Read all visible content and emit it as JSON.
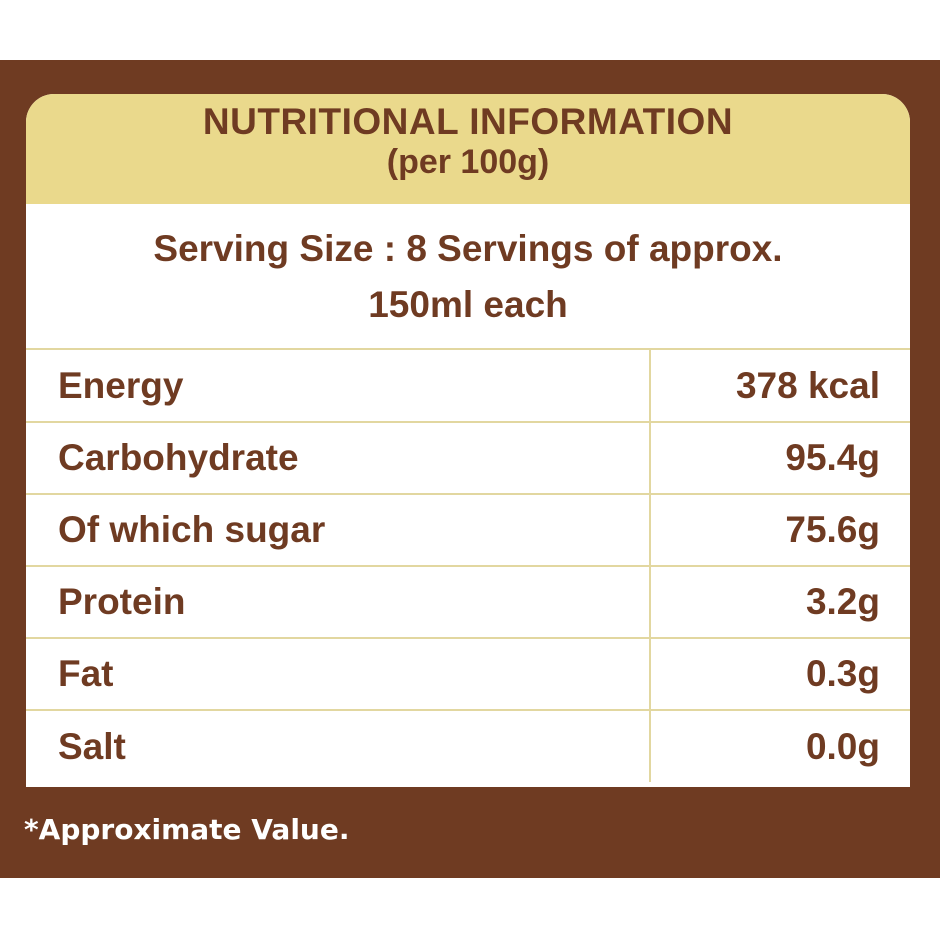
{
  "header": {
    "title": "NUTRITIONAL INFORMATION",
    "subtitle": "(per 100g)"
  },
  "serving": {
    "line1": "Serving Size : 8 Servings of approx.",
    "line2": "150ml each"
  },
  "nutrients": [
    {
      "name": "Energy",
      "value": "378 kcal"
    },
    {
      "name": "Carbohydrate",
      "value": "95.4g"
    },
    {
      "name": "Of which sugar",
      "value": "75.6g"
    },
    {
      "name": "Protein",
      "value": "3.2g"
    },
    {
      "name": "Fat",
      "value": "0.3g"
    },
    {
      "name": "Salt",
      "value": "0.0g"
    }
  ],
  "footnote": "*Approximate Value.",
  "colors": {
    "frame_brown": "#6f3b22",
    "header_gold": "#ead98c",
    "divider": "#e2d7a0",
    "text_brown": "#6f3b22"
  }
}
